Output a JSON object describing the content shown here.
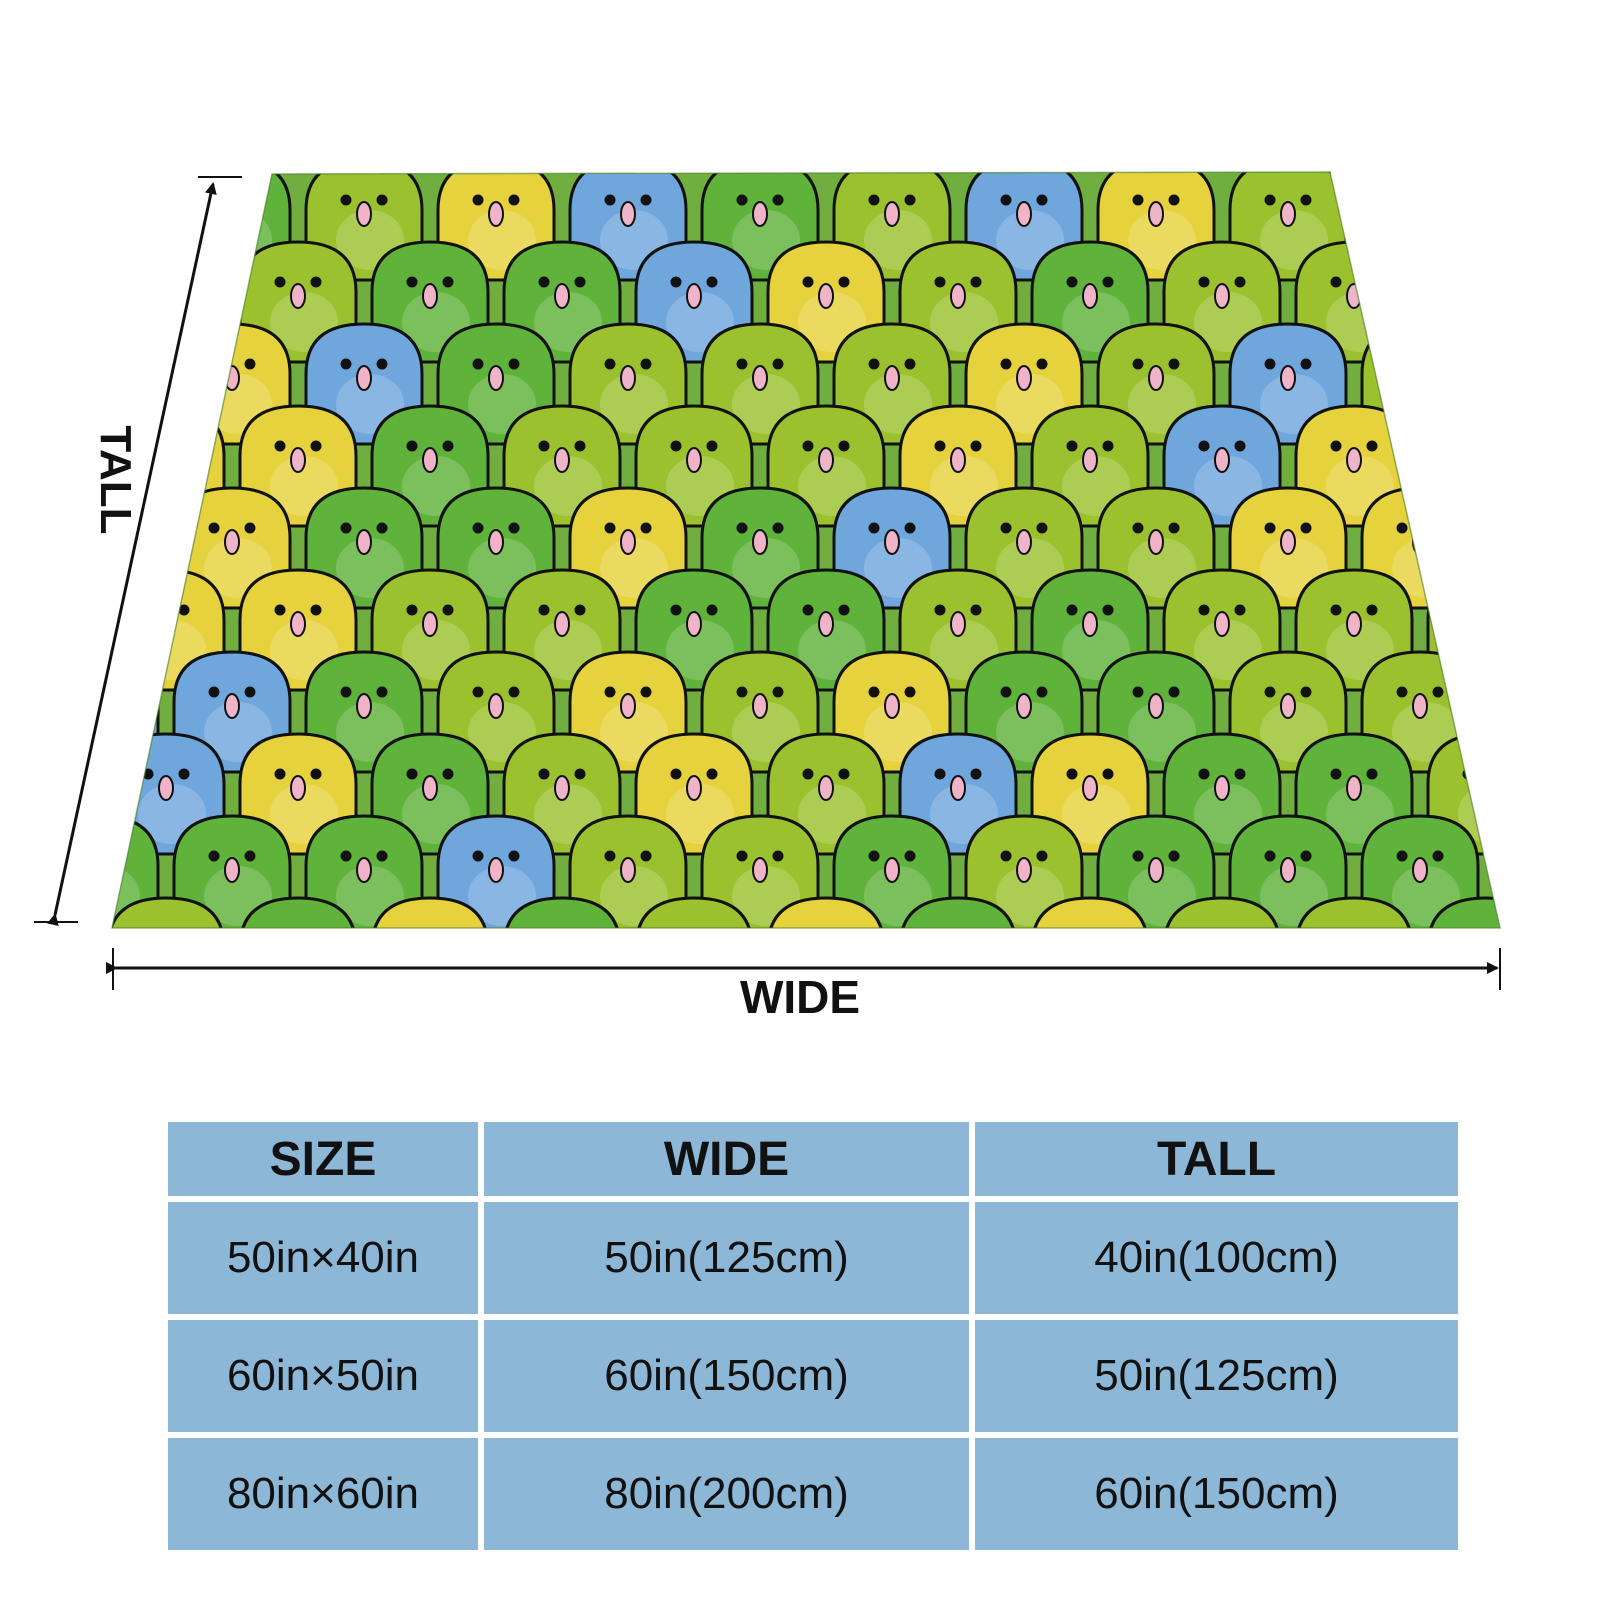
{
  "colors": {
    "table_cell": "#8db7d7",
    "bird_green": "#5fb23a",
    "bird_lime": "#9cc12e",
    "bird_yellow": "#e6d23c",
    "bird_blue": "#6fa6dc",
    "bird_outline": "#111111",
    "beak_pink": "#f0b4c8"
  },
  "diagram": {
    "tall_label": "TALL",
    "wide_label": "WIDE",
    "pattern": "green-blue-yellow-parrots"
  },
  "table": {
    "headers": [
      "SIZE",
      "WIDE",
      "TALL"
    ],
    "rows": [
      [
        "50in×40in",
        "50in(125cm)",
        "40in(100cm)"
      ],
      [
        "60in×50in",
        "60in(150cm)",
        "50in(125cm)"
      ],
      [
        "80in×60in",
        "80in(200cm)",
        "60in(150cm)"
      ]
    ]
  }
}
